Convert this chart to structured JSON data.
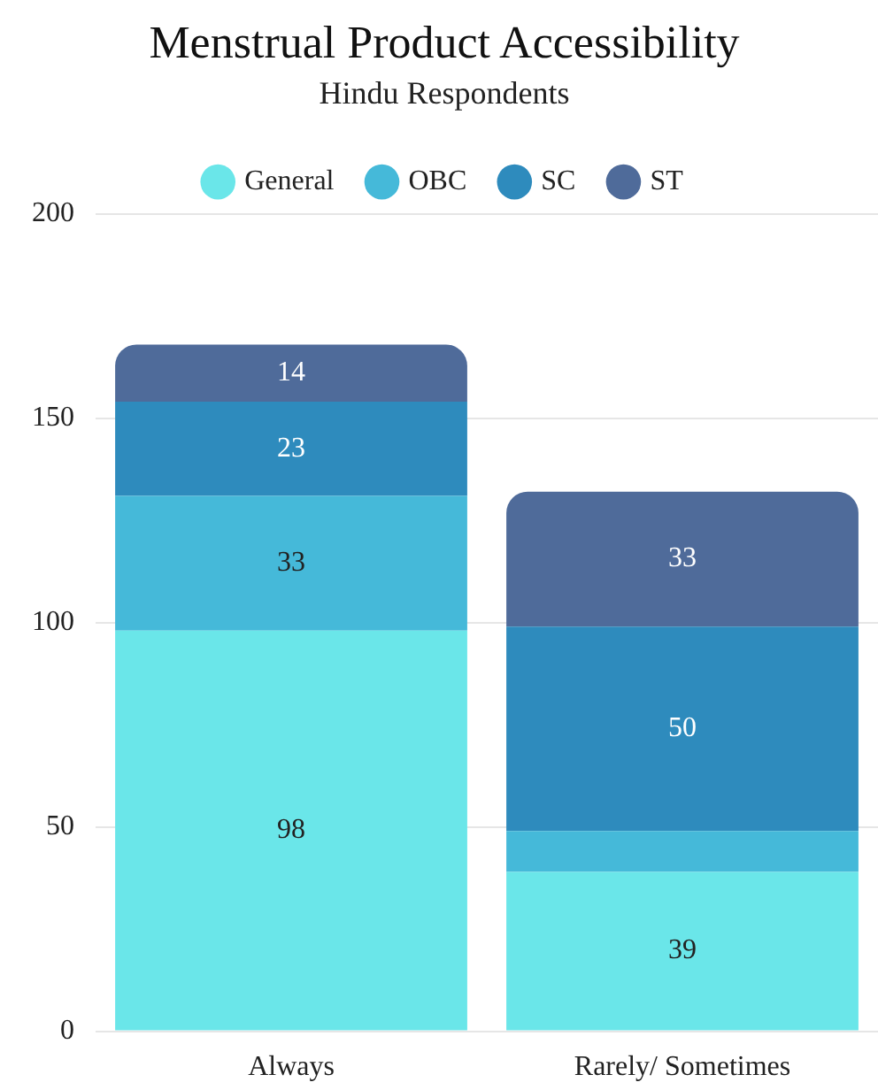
{
  "chart_data": {
    "type": "bar",
    "title": "Menstrual Product Accessibility",
    "subtitle": "Hindu Respondents",
    "categories": [
      "Always",
      "Rarely/ Sometimes"
    ],
    "stacked": true,
    "legend": "top",
    "grid": "y",
    "ylim": [
      0,
      200
    ],
    "yticks": [
      0,
      50,
      100,
      150,
      200
    ],
    "series": [
      {
        "name": "General",
        "color": "#6ae6e9",
        "values": [
          98,
          39
        ],
        "value_labels": [
          "98",
          "39"
        ]
      },
      {
        "name": "OBC",
        "color": "#45b9d9",
        "values": [
          33,
          10
        ],
        "value_labels": [
          "33",
          null
        ]
      },
      {
        "name": "SC",
        "color": "#2e8bbd",
        "values": [
          23,
          50
        ],
        "value_labels": [
          "23",
          "50"
        ]
      },
      {
        "name": "ST",
        "color": "#4f6b9a",
        "values": [
          14,
          33
        ],
        "value_labels": [
          "14",
          "33"
        ]
      }
    ]
  }
}
